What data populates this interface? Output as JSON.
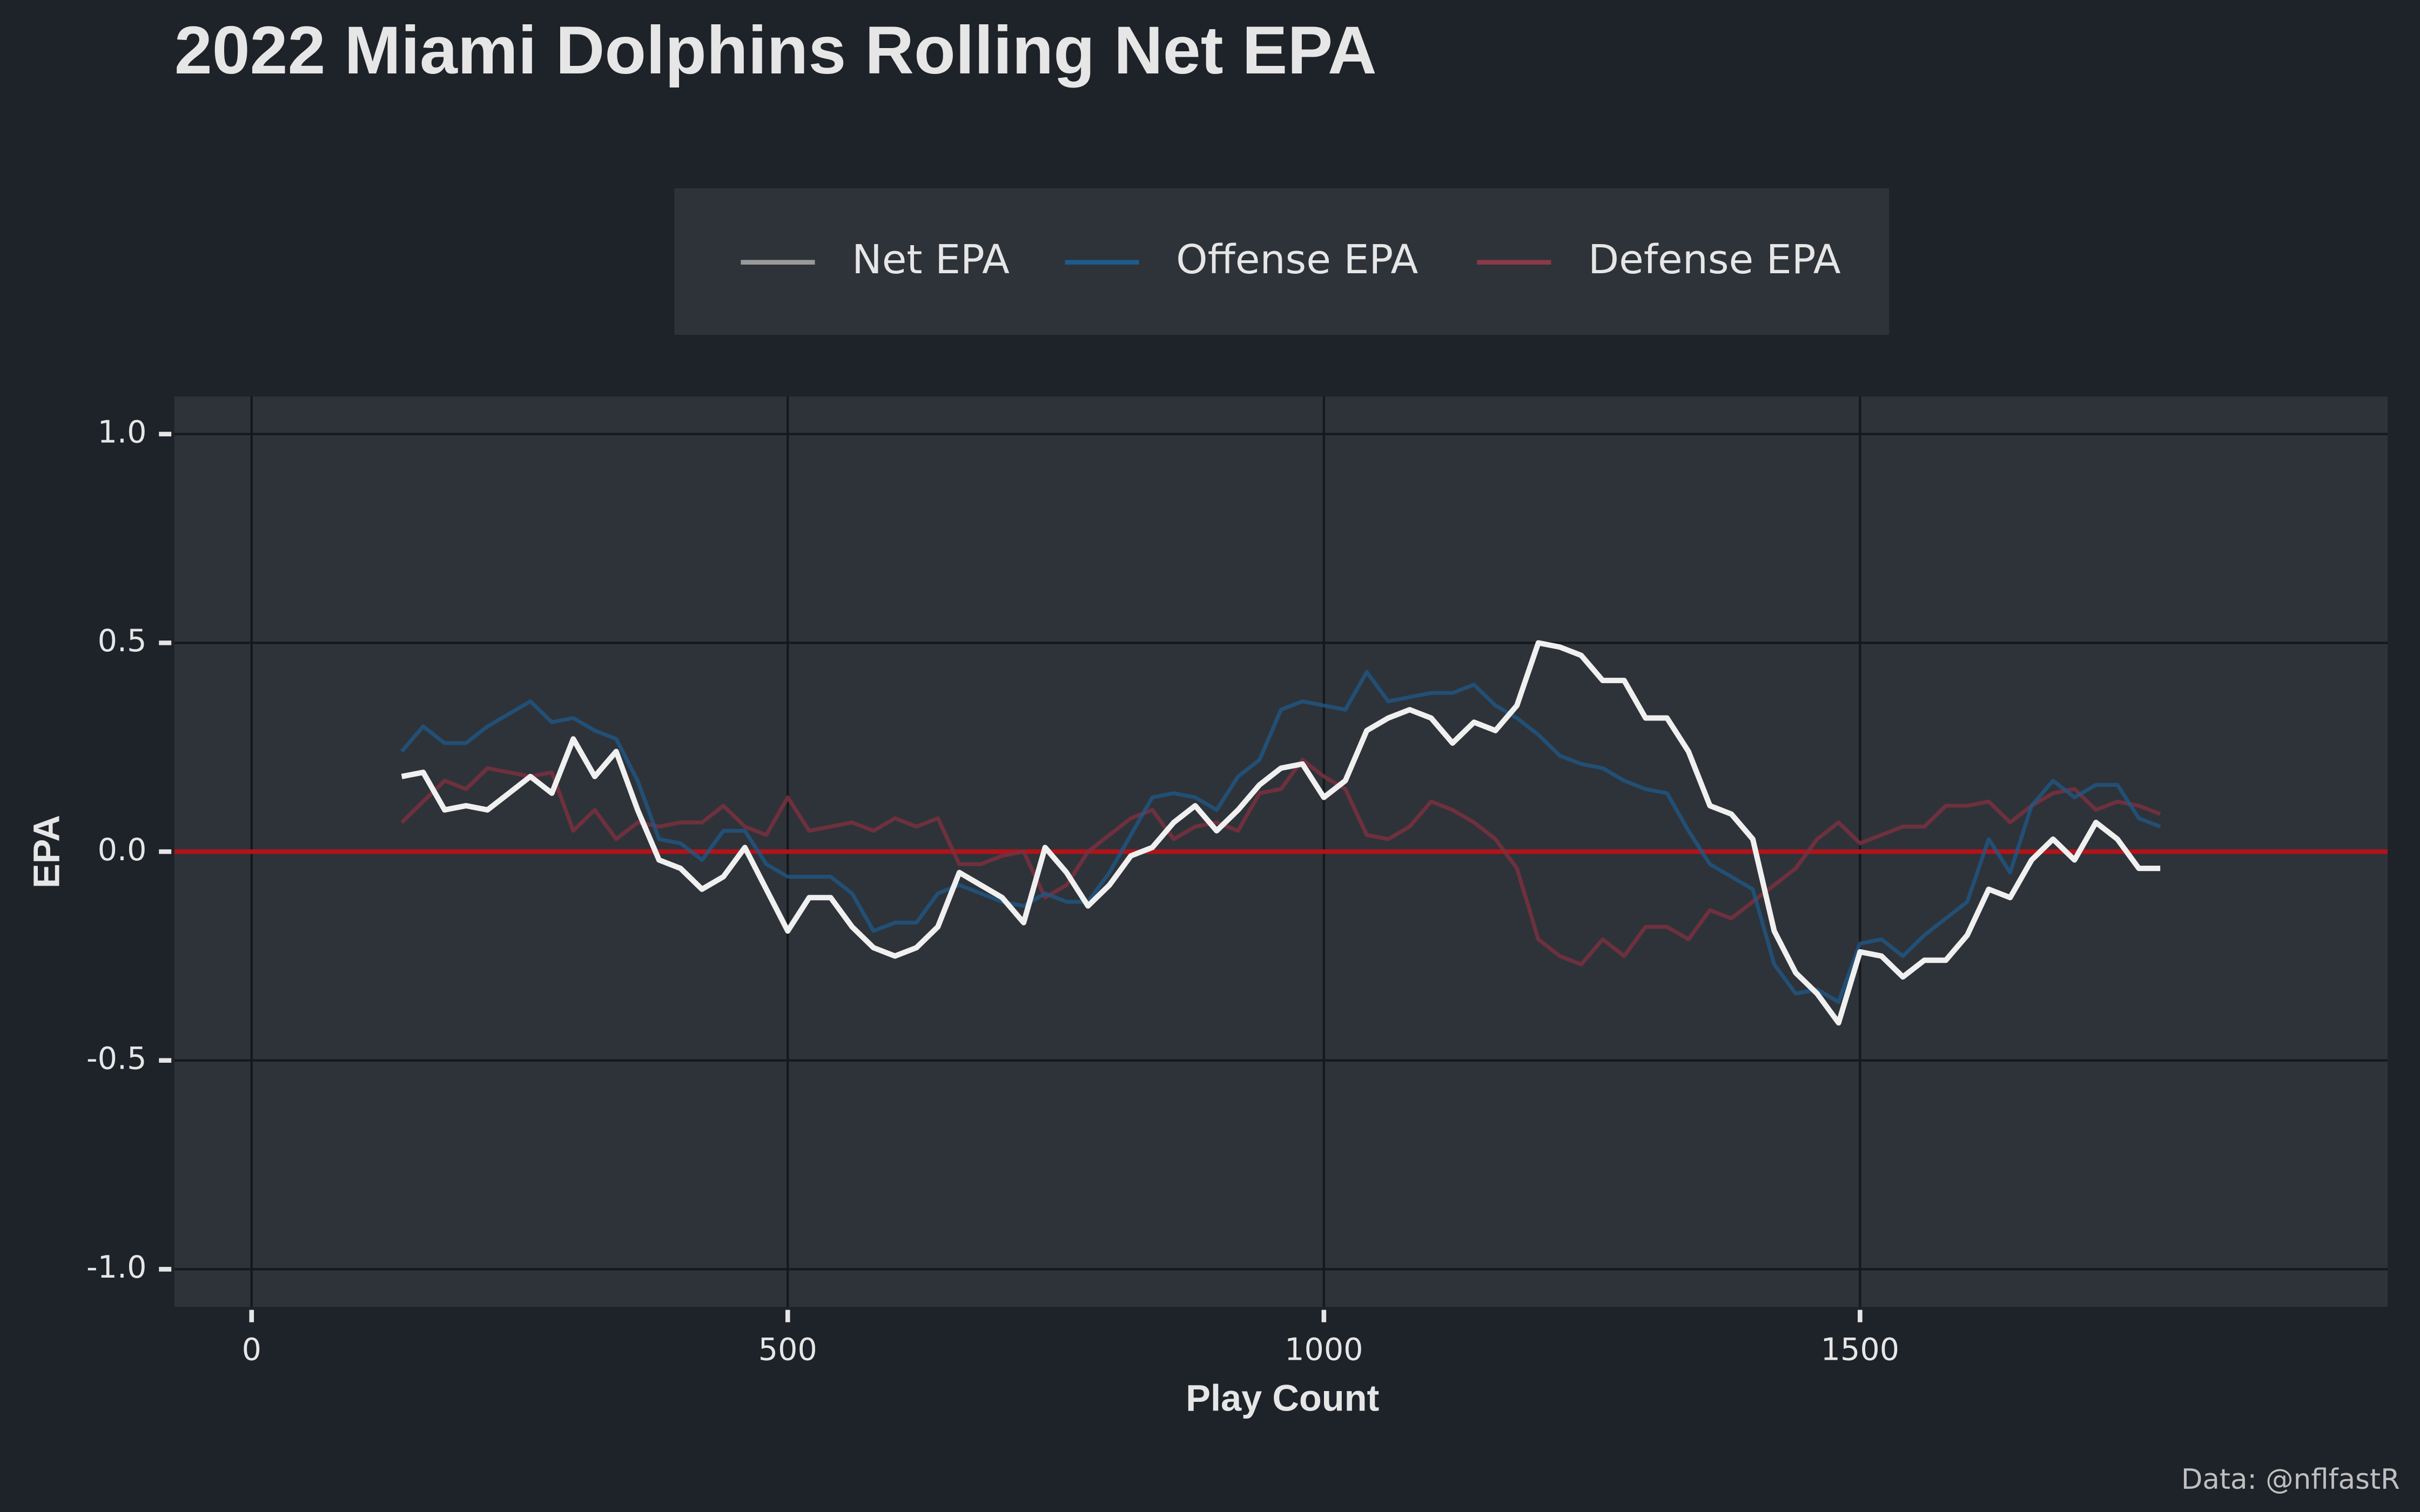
{
  "chart_data": {
    "type": "line",
    "title": "2022 Miami Dolphins Rolling Net EPA",
    "x_label": "Play Count",
    "y_label": "EPA",
    "caption": "Data: @nflfastR",
    "legend": "top",
    "grid": true,
    "hline": {
      "value": 0,
      "color": "#b0141a"
    },
    "xlim": [
      -72,
      1992
    ],
    "ylim": [
      -1.09,
      1.09
    ],
    "xticks": [
      0,
      500,
      1000,
      1500
    ],
    "yticks": [
      {
        "value": -1,
        "label": "-1.0"
      },
      {
        "value": -0.5,
        "label": "-0.5"
      },
      {
        "value": 0,
        "label": "0.0"
      },
      {
        "value": 0.5,
        "label": "0.5"
      },
      {
        "value": 1,
        "label": "1.0"
      }
    ],
    "x": [
      140,
      160,
      180,
      200,
      220,
      240,
      260,
      280,
      300,
      320,
      340,
      360,
      380,
      400,
      420,
      440,
      460,
      480,
      500,
      520,
      540,
      560,
      580,
      600,
      620,
      640,
      660,
      680,
      700,
      720,
      740,
      760,
      780,
      800,
      820,
      840,
      860,
      880,
      900,
      920,
      940,
      960,
      980,
      1000,
      1020,
      1040,
      1060,
      1080,
      1100,
      1120,
      1140,
      1160,
      1180,
      1200,
      1220,
      1240,
      1260,
      1280,
      1300,
      1320,
      1340,
      1360,
      1380,
      1400,
      1420,
      1440,
      1460,
      1480,
      1500,
      1520,
      1540,
      1560,
      1580,
      1600,
      1620,
      1640,
      1660,
      1680,
      1700,
      1720,
      1740,
      1760,
      1780
    ],
    "series": [
      {
        "name": "Net EPA",
        "color": "#f0f0f0",
        "legend_color": "#9a9a9a",
        "width": 3.5,
        "opacity": 1,
        "values": [
          0.18,
          0.19,
          0.1,
          0.11,
          0.1,
          0.14,
          0.18,
          0.14,
          0.27,
          0.18,
          0.24,
          0.1,
          -0.02,
          -0.04,
          -0.09,
          -0.06,
          0.01,
          -0.09,
          -0.19,
          -0.11,
          -0.11,
          -0.18,
          -0.23,
          -0.25,
          -0.23,
          -0.18,
          -0.05,
          -0.08,
          -0.11,
          -0.17,
          0.01,
          -0.05,
          -0.13,
          -0.08,
          -0.01,
          0.01,
          0.07,
          0.11,
          0.05,
          0.1,
          0.16,
          0.2,
          0.21,
          0.13,
          0.17,
          0.29,
          0.32,
          0.34,
          0.32,
          0.26,
          0.31,
          0.29,
          0.35,
          0.5,
          0.49,
          0.47,
          0.41,
          0.41,
          0.32,
          0.32,
          0.24,
          0.11,
          0.09,
          0.03,
          -0.19,
          -0.29,
          -0.34,
          -0.41,
          -0.24,
          -0.25,
          -0.3,
          -0.26,
          -0.26,
          -0.2,
          -0.09,
          -0.11,
          -0.02,
          0.03,
          -0.02,
          0.07,
          0.03,
          -0.04,
          -0.04
        ]
      },
      {
        "name": "Offense EPA",
        "color": "#1f5a8a",
        "legend_color": "#1f5a8a",
        "width": 2.5,
        "opacity": 0.75,
        "values": [
          0.24,
          0.3,
          0.26,
          0.26,
          0.3,
          0.33,
          0.36,
          0.31,
          0.32,
          0.29,
          0.27,
          0.17,
          0.03,
          0.02,
          -0.02,
          0.05,
          0.05,
          -0.03,
          -0.06,
          -0.06,
          -0.06,
          -0.1,
          -0.19,
          -0.17,
          -0.17,
          -0.1,
          -0.08,
          -0.1,
          -0.12,
          -0.13,
          -0.1,
          -0.12,
          -0.12,
          -0.05,
          0.04,
          0.13,
          0.14,
          0.13,
          0.1,
          0.18,
          0.22,
          0.34,
          0.36,
          0.35,
          0.34,
          0.43,
          0.36,
          0.37,
          0.38,
          0.38,
          0.4,
          0.35,
          0.32,
          0.28,
          0.23,
          0.21,
          0.2,
          0.17,
          0.15,
          0.14,
          0.05,
          -0.03,
          -0.06,
          -0.09,
          -0.27,
          -0.34,
          -0.33,
          -0.36,
          -0.22,
          -0.21,
          -0.25,
          -0.2,
          -0.16,
          -0.12,
          0.03,
          -0.05,
          0.11,
          0.17,
          0.13,
          0.16,
          0.16,
          0.08,
          0.06
        ]
      },
      {
        "name": "Defense EPA",
        "color": "#7a3040",
        "legend_color": "#8a3a4a",
        "width": 2.5,
        "opacity": 0.85,
        "values": [
          0.07,
          0.12,
          0.17,
          0.15,
          0.2,
          0.19,
          0.18,
          0.19,
          0.05,
          0.1,
          0.03,
          0.07,
          0.06,
          0.07,
          0.07,
          0.11,
          0.06,
          0.04,
          0.13,
          0.05,
          0.06,
          0.07,
          0.05,
          0.08,
          0.06,
          0.08,
          -0.03,
          -0.03,
          -0.01,
          0.0,
          -0.11,
          -0.08,
          0.0,
          0.04,
          0.08,
          0.1,
          0.03,
          0.06,
          0.07,
          0.05,
          0.14,
          0.15,
          0.22,
          0.18,
          0.15,
          0.04,
          0.03,
          0.06,
          0.12,
          0.1,
          0.07,
          0.03,
          -0.04,
          -0.21,
          -0.25,
          -0.27,
          -0.21,
          -0.25,
          -0.18,
          -0.18,
          -0.21,
          -0.14,
          -0.16,
          -0.12,
          -0.08,
          -0.04,
          0.03,
          0.07,
          0.02,
          0.04,
          0.06,
          0.06,
          0.11,
          0.11,
          0.12,
          0.07,
          0.11,
          0.14,
          0.15,
          0.1,
          0.12,
          0.11,
          0.09
        ]
      }
    ]
  }
}
